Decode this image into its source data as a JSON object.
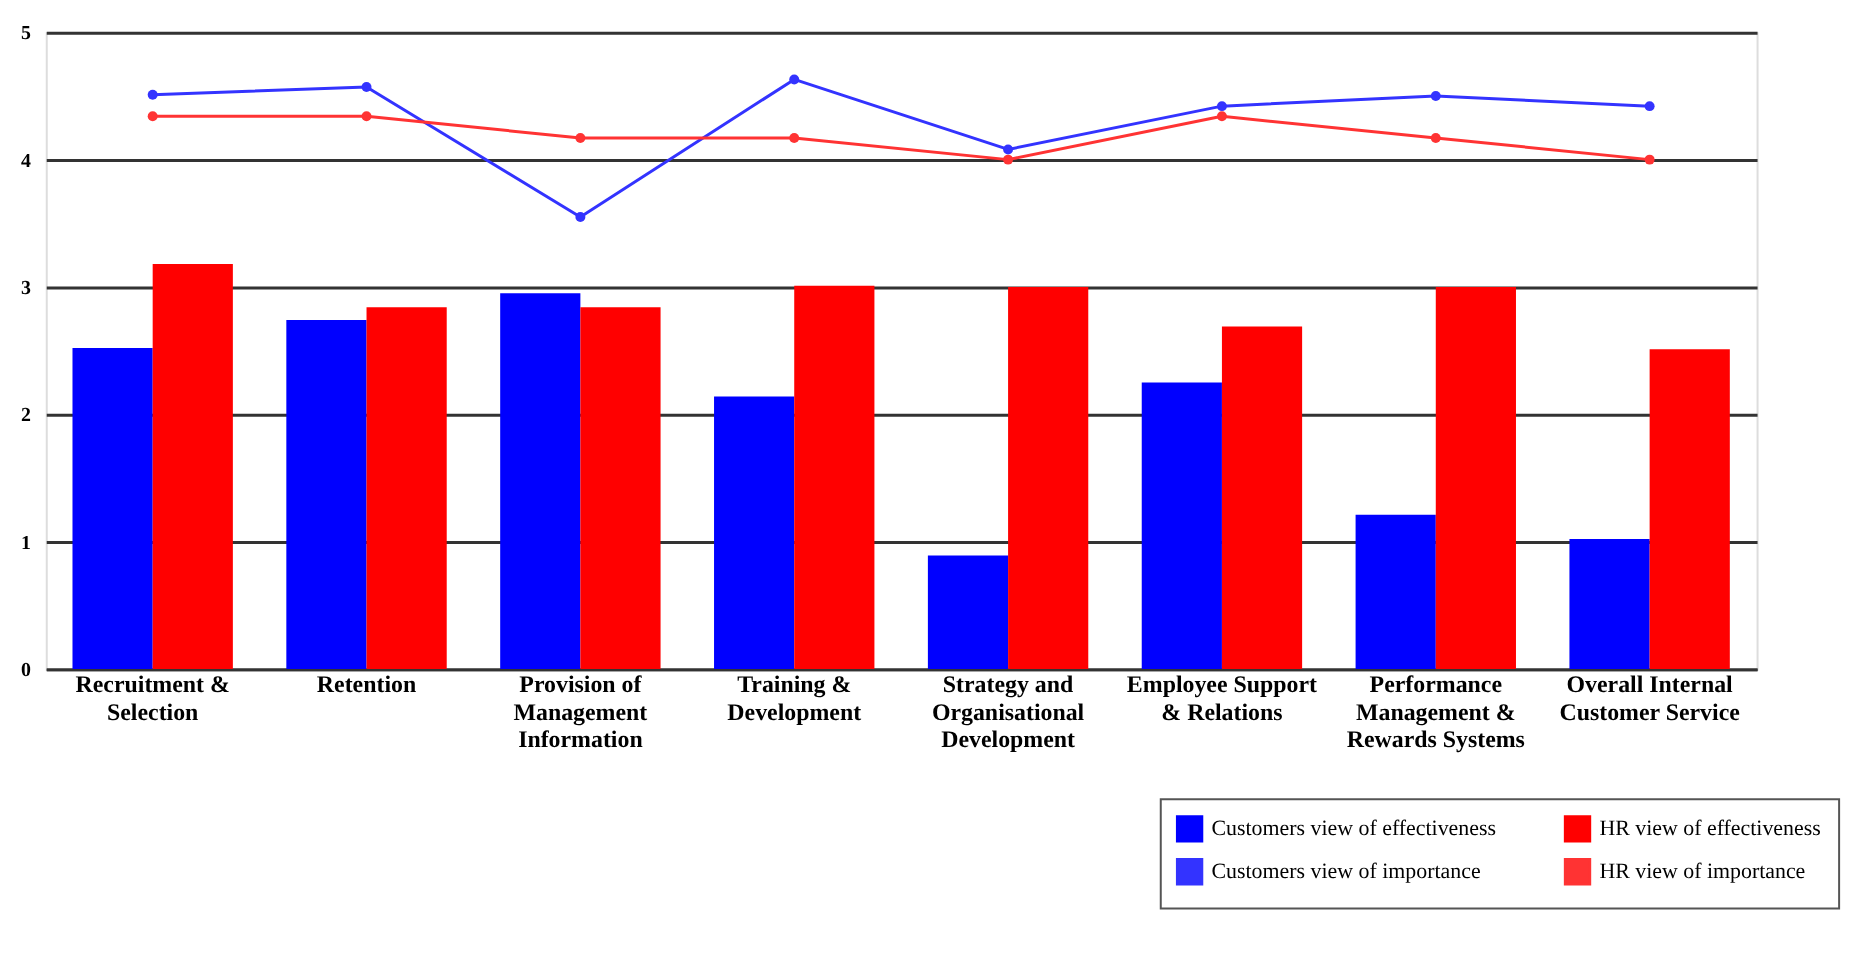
{
  "chart_data": {
    "type": "bar",
    "categories": [
      "Recruitment &\nSelection",
      "Retention",
      "Provision of\nManagement\nInformation",
      "Training &\nDevelopment",
      "Strategy and\nOrganisational\nDevelopment",
      "Employee Support\n& Relations",
      "Performance\nManagement &\nRewards Systems",
      "Overall Internal\nCustomer Service"
    ],
    "series": [
      {
        "name": "Customers view of effectiveness",
        "color": "#0000ff",
        "values": [
          2.52,
          2.74,
          2.95,
          2.14,
          0.89,
          2.25,
          1.21,
          1.02
        ]
      },
      {
        "name": "HR view of effectiveness",
        "color": "#ff0000",
        "values": [
          3.18,
          2.84,
          2.84,
          3.01,
          3.0,
          2.69,
          3.0,
          2.51
        ]
      },
      {
        "name": "Customers view of importance",
        "type": "line",
        "color": "#3333ff",
        "values": [
          4.51,
          4.57,
          3.55,
          4.63,
          4.08,
          4.42,
          4.5,
          4.42
        ]
      },
      {
        "name": "HR view of importance",
        "type": "line",
        "color": "#ff3333",
        "values": [
          4.34,
          4.34,
          4.17,
          4.17,
          4.0,
          4.34,
          4.17,
          4.0
        ]
      }
    ],
    "ylim": [
      0,
      5
    ],
    "yticks": [
      0,
      1,
      2,
      3,
      4,
      5
    ],
    "grid": "y",
    "legend": "bottom right",
    "marker": "circle",
    "line_style": "solid"
  }
}
